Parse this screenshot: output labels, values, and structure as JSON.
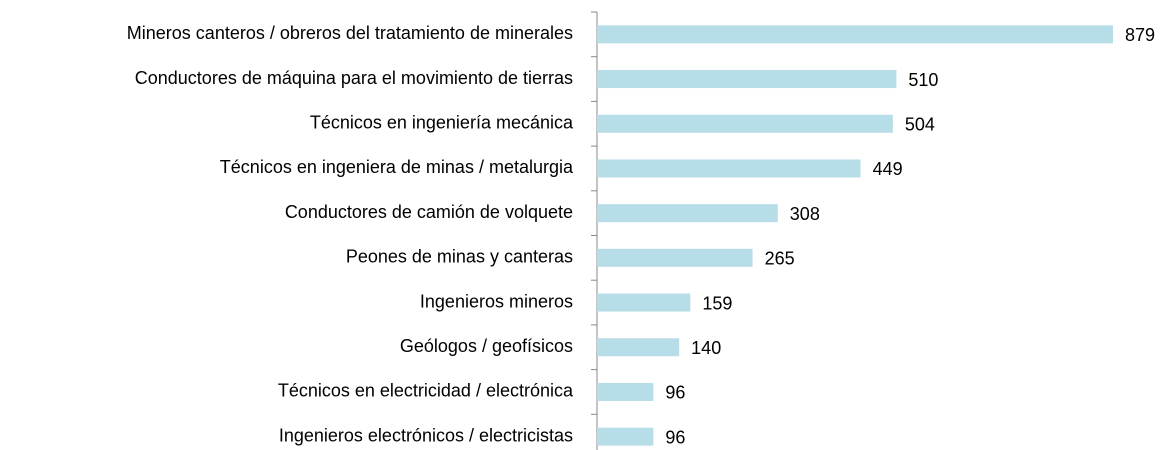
{
  "chart_data": {
    "type": "bar",
    "orientation": "horizontal",
    "categories": [
      "Mineros canteros / obreros del tratamiento de minerales",
      "Conductores de máquina para el movimiento de tierras",
      "Técnicos en ingeniería mecánica",
      "Técnicos en ingeniera de minas / metalurgia",
      "Conductores de camión de volquete",
      "Peones de minas y canteras",
      "Ingenieros mineros",
      "Geólogos / geofísicos",
      "Técnicos en electricidad / electrónica",
      "Ingenieros electrónicos / electricistas"
    ],
    "values": [
      879,
      510,
      504,
      449,
      308,
      265,
      159,
      140,
      96,
      96
    ],
    "color": "#b7dde8"
  }
}
